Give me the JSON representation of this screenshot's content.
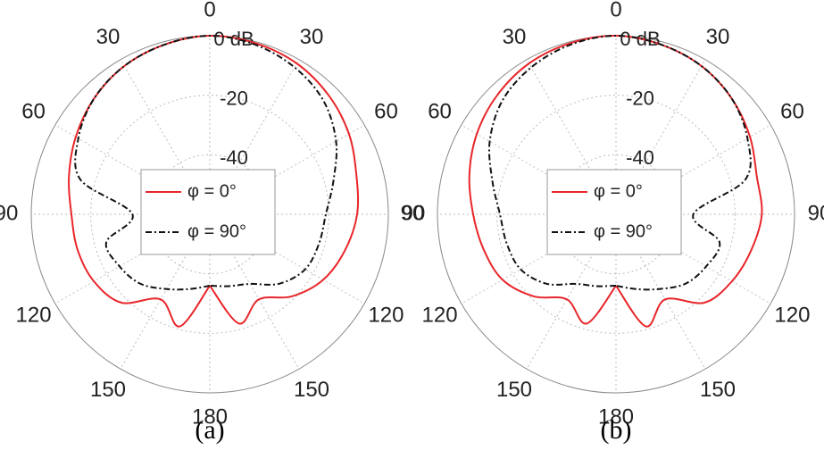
{
  "chart_data": [
    {
      "type": "polar",
      "caption": "(a)",
      "rlim": [
        -60,
        0
      ],
      "rticks": [
        {
          "value": 0,
          "label": "0 dB"
        },
        -20,
        -40
      ],
      "thetaticks": [
        0,
        30,
        60,
        90,
        120,
        150,
        180,
        {
          "value": 210,
          "label": "150"
        },
        {
          "value": 240,
          "label": "120"
        },
        {
          "value": 270,
          "label": "90"
        },
        {
          "value": 300,
          "label": "60"
        },
        {
          "value": 330,
          "label": "30"
        }
      ],
      "grid": true,
      "legend": "center",
      "theta": [
        -180,
        -165,
        -150,
        -135,
        -120,
        -105,
        -90,
        -75,
        -60,
        -45,
        -30,
        -15,
        0,
        15,
        30,
        45,
        60,
        75,
        90,
        105,
        120,
        135,
        150,
        165,
        180
      ],
      "series": [
        {
          "name": "φ = 0°",
          "color": "#e8262a",
          "dash": "solid",
          "values": [
            -36,
            -21,
            -27,
            -18,
            -15,
            -14,
            -13.5,
            -11,
            -8,
            -5,
            -2.5,
            -1,
            0,
            -0.5,
            -1.5,
            -3.5,
            -6,
            -9,
            -10.5,
            -13,
            -16,
            -21,
            -27,
            -22,
            -36
          ]
        },
        {
          "name": "φ = 90°",
          "color": "#111111",
          "dash": "dashdot",
          "values": [
            -36,
            -34,
            -31,
            -27,
            -25,
            -24,
            -34,
            -15,
            -9,
            -5,
            -2.5,
            -1,
            0,
            -1,
            -3,
            -6,
            -11,
            -17,
            -21,
            -22,
            -23,
            -27,
            -33,
            -35,
            -36
          ]
        }
      ]
    },
    {
      "type": "polar",
      "caption": "(b)",
      "rlim": [
        -60,
        0
      ],
      "rticks": [
        {
          "value": 0,
          "label": "0 dB"
        },
        -20,
        -40
      ],
      "thetaticks": [
        0,
        30,
        60,
        90,
        120,
        150,
        180,
        {
          "value": 210,
          "label": "150"
        },
        {
          "value": 240,
          "label": "120"
        },
        {
          "value": 270,
          "label": "90"
        },
        {
          "value": 300,
          "label": "60"
        },
        {
          "value": 330,
          "label": "30"
        }
      ],
      "grid": true,
      "legend": "center",
      "theta": [
        -180,
        -165,
        -150,
        -135,
        -120,
        -105,
        -90,
        -75,
        -60,
        -45,
        -30,
        -15,
        0,
        15,
        30,
        45,
        60,
        75,
        90,
        105,
        120,
        135,
        150,
        165,
        180
      ],
      "series": [
        {
          "name": "φ = 0°",
          "color": "#e8262a",
          "dash": "solid",
          "values": [
            -36,
            -22,
            -27,
            -21,
            -16,
            -14,
            -12,
            -9,
            -6,
            -3.5,
            -1.5,
            -0.5,
            0,
            -1,
            -2.5,
            -5,
            -8,
            -11,
            -11,
            -13,
            -15,
            -18,
            -27,
            -21,
            -36
          ]
        },
        {
          "name": "φ = 90°",
          "color": "#111111",
          "dash": "dashdot",
          "values": [
            -36,
            -35,
            -33,
            -27,
            -23,
            -22,
            -21,
            -17,
            -11,
            -6,
            -3,
            -1,
            0,
            -1,
            -2.5,
            -5,
            -9,
            -15,
            -34,
            -24,
            -25,
            -27,
            -31,
            -34,
            -36
          ]
        }
      ]
    }
  ]
}
